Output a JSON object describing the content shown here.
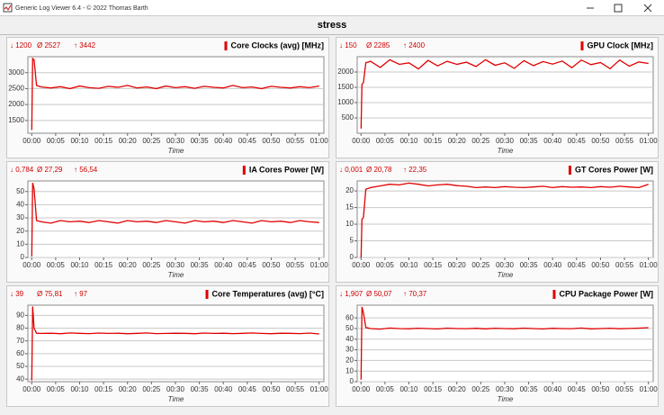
{
  "window": {
    "title": "Generic Log Viewer 6.4 - © 2022 Thomas Barth"
  },
  "title": "stress",
  "chart_data": [
    {
      "type": "line",
      "title": "Core Clocks (avg) [MHz]",
      "stats": [
        "↓ 1200",
        "Ø 2527",
        "↑ 3442"
      ],
      "color": "#e00000",
      "xlabel": "Time",
      "grid": true,
      "x": [
        0,
        0.2,
        0.5,
        1,
        2,
        4,
        6,
        8,
        10,
        12,
        14,
        16,
        18,
        20,
        22,
        24,
        26,
        28,
        30,
        32,
        34,
        36,
        38,
        40,
        42,
        44,
        46,
        48,
        50,
        52,
        54,
        56,
        58,
        60
      ],
      "values": [
        1200,
        3442,
        3400,
        2600,
        2550,
        2520,
        2560,
        2500,
        2580,
        2530,
        2510,
        2570,
        2540,
        2600,
        2520,
        2550,
        2500,
        2580,
        2530,
        2560,
        2510,
        2570,
        2540,
        2520,
        2600,
        2530,
        2550,
        2500,
        2570,
        2540,
        2520,
        2560,
        2530,
        2580
      ],
      "xlim": [
        -0.8,
        61
      ],
      "ylim": [
        1100,
        3500
      ],
      "yticks": [
        1500,
        2000,
        2500,
        3000
      ],
      "xticks": [
        {
          "value": 0,
          "label": "00:00"
        },
        {
          "value": 5,
          "label": "00:05"
        },
        {
          "value": 10,
          "label": "00:10"
        },
        {
          "value": 15,
          "label": "00:15"
        },
        {
          "value": 20,
          "label": "00:20"
        },
        {
          "value": 25,
          "label": "00:25"
        },
        {
          "value": 30,
          "label": "00:30"
        },
        {
          "value": 35,
          "label": "00:35"
        },
        {
          "value": 40,
          "label": "00:40"
        },
        {
          "value": 45,
          "label": "00:45"
        },
        {
          "value": 50,
          "label": "00:50"
        },
        {
          "value": 55,
          "label": "00:55"
        },
        {
          "value": 60,
          "label": "01:00"
        }
      ]
    },
    {
      "type": "line",
      "title": "GPU Clock [MHz]",
      "stats": [
        "↓ 150",
        "Ø 2285",
        "↑ 2400"
      ],
      "color": "#e00000",
      "xlabel": "Time",
      "grid": true,
      "x": [
        0,
        0.2,
        0.5,
        1,
        2,
        4,
        6,
        8,
        10,
        12,
        14,
        16,
        18,
        20,
        22,
        24,
        26,
        28,
        30,
        32,
        34,
        36,
        38,
        40,
        42,
        44,
        46,
        48,
        50,
        52,
        54,
        56,
        58,
        60
      ],
      "values": [
        150,
        1600,
        1650,
        2300,
        2350,
        2150,
        2400,
        2250,
        2300,
        2100,
        2380,
        2200,
        2350,
        2250,
        2320,
        2180,
        2400,
        2220,
        2300,
        2120,
        2370,
        2210,
        2340,
        2260,
        2360,
        2140,
        2390,
        2240,
        2310,
        2110,
        2390,
        2190,
        2330,
        2280
      ],
      "xlim": [
        -0.8,
        61
      ],
      "ylim": [
        0,
        2500
      ],
      "yticks": [
        500,
        1000,
        1500,
        2000
      ],
      "xticks": [
        {
          "value": 0,
          "label": "00:00"
        },
        {
          "value": 5,
          "label": "00:05"
        },
        {
          "value": 10,
          "label": "00:10"
        },
        {
          "value": 15,
          "label": "00:15"
        },
        {
          "value": 20,
          "label": "00:20"
        },
        {
          "value": 25,
          "label": "00:25"
        },
        {
          "value": 30,
          "label": "00:30"
        },
        {
          "value": 35,
          "label": "00:35"
        },
        {
          "value": 40,
          "label": "00:40"
        },
        {
          "value": 45,
          "label": "00:45"
        },
        {
          "value": 50,
          "label": "00:50"
        },
        {
          "value": 55,
          "label": "00:55"
        },
        {
          "value": 60,
          "label": "01:00"
        }
      ]
    },
    {
      "type": "line",
      "title": "IA Cores Power [W]",
      "stats": [
        "↓ 0,784",
        "Ø 27,29",
        "↑ 56,54"
      ],
      "color": "#e00000",
      "xlabel": "Time",
      "grid": true,
      "x": [
        0,
        0.2,
        0.5,
        1,
        2,
        4,
        6,
        8,
        10,
        12,
        14,
        16,
        18,
        20,
        22,
        24,
        26,
        28,
        30,
        32,
        34,
        36,
        38,
        40,
        42,
        44,
        46,
        48,
        50,
        52,
        54,
        56,
        58,
        60
      ],
      "values": [
        0.784,
        56.54,
        52,
        28,
        27,
        26,
        28,
        27,
        27.5,
        26.5,
        28,
        27,
        26,
        28,
        27,
        27.5,
        26.5,
        28,
        27,
        26,
        28,
        27,
        27.5,
        26.5,
        28,
        27,
        26,
        28,
        27,
        27.5,
        26.5,
        28,
        27,
        26.5
      ],
      "xlim": [
        -0.8,
        61
      ],
      "ylim": [
        0,
        58
      ],
      "yticks": [
        0,
        10,
        20,
        30,
        40,
        50
      ],
      "xticks": [
        {
          "value": 0,
          "label": "00:00"
        },
        {
          "value": 5,
          "label": "00:05"
        },
        {
          "value": 10,
          "label": "00:10"
        },
        {
          "value": 15,
          "label": "00:15"
        },
        {
          "value": 20,
          "label": "00:20"
        },
        {
          "value": 25,
          "label": "00:25"
        },
        {
          "value": 30,
          "label": "00:30"
        },
        {
          "value": 35,
          "label": "00:35"
        },
        {
          "value": 40,
          "label": "00:40"
        },
        {
          "value": 45,
          "label": "00:45"
        },
        {
          "value": 50,
          "label": "00:50"
        },
        {
          "value": 55,
          "label": "00:55"
        },
        {
          "value": 60,
          "label": "01:00"
        }
      ]
    },
    {
      "type": "line",
      "title": "GT Cores Power [W]",
      "stats": [
        "↓ 0,001",
        "Ø 20,78",
        "↑ 22,35"
      ],
      "color": "#e00000",
      "xlabel": "Time",
      "grid": true,
      "x": [
        0,
        0.2,
        0.5,
        1,
        2,
        4,
        6,
        8,
        10,
        12,
        14,
        16,
        18,
        20,
        22,
        24,
        26,
        28,
        30,
        32,
        34,
        36,
        38,
        40,
        42,
        44,
        46,
        48,
        50,
        52,
        54,
        56,
        58,
        60
      ],
      "values": [
        0.001,
        11.5,
        12,
        20.5,
        21,
        21.5,
        22,
        21.8,
        22.35,
        22,
        21.5,
        21.8,
        22,
        21.6,
        21.4,
        21,
        21.2,
        21,
        21.3,
        21.1,
        21,
        21.2,
        21.4,
        21,
        21.3,
        21.1,
        21.2,
        21,
        21.3,
        21.1,
        21.4,
        21.2,
        21,
        22
      ],
      "xlim": [
        -0.8,
        61
      ],
      "ylim": [
        0,
        23
      ],
      "yticks": [
        0,
        5,
        10,
        15,
        20
      ],
      "xticks": [
        {
          "value": 0,
          "label": "00:00"
        },
        {
          "value": 5,
          "label": "00:05"
        },
        {
          "value": 10,
          "label": "00:10"
        },
        {
          "value": 15,
          "label": "00:15"
        },
        {
          "value": 20,
          "label": "00:20"
        },
        {
          "value": 25,
          "label": "00:25"
        },
        {
          "value": 30,
          "label": "00:30"
        },
        {
          "value": 35,
          "label": "00:35"
        },
        {
          "value": 40,
          "label": "00:40"
        },
        {
          "value": 45,
          "label": "00:45"
        },
        {
          "value": 50,
          "label": "00:50"
        },
        {
          "value": 55,
          "label": "00:55"
        },
        {
          "value": 60,
          "label": "01:00"
        }
      ]
    },
    {
      "type": "line",
      "title": "Core Temperatures (avg) [°C]",
      "stats": [
        "↓ 39",
        "Ø 75,81",
        "↑ 97"
      ],
      "color": "#e00000",
      "xlabel": "Time",
      "grid": true,
      "x": [
        0,
        0.2,
        0.5,
        1,
        2,
        4,
        6,
        8,
        10,
        12,
        14,
        16,
        18,
        20,
        22,
        24,
        26,
        28,
        30,
        32,
        34,
        36,
        38,
        40,
        42,
        44,
        46,
        48,
        50,
        52,
        54,
        56,
        58,
        60
      ],
      "values": [
        39,
        97,
        80,
        76,
        75.8,
        76,
        75.6,
        76.2,
        75.9,
        75.7,
        76.1,
        75.8,
        76,
        75.6,
        75.9,
        76.2,
        75.7,
        75.8,
        76,
        75.9,
        75.6,
        76.1,
        75.8,
        76,
        75.7,
        75.9,
        76.2,
        75.8,
        75.6,
        76,
        75.9,
        75.7,
        76.1,
        75.4
      ],
      "xlim": [
        -0.8,
        61
      ],
      "ylim": [
        38,
        98
      ],
      "yticks": [
        40,
        50,
        60,
        70,
        80,
        90
      ],
      "xticks": [
        {
          "value": 0,
          "label": "00:00"
        },
        {
          "value": 5,
          "label": "00:05"
        },
        {
          "value": 10,
          "label": "00:10"
        },
        {
          "value": 15,
          "label": "00:15"
        },
        {
          "value": 20,
          "label": "00:20"
        },
        {
          "value": 25,
          "label": "00:25"
        },
        {
          "value": 30,
          "label": "00:30"
        },
        {
          "value": 35,
          "label": "00:35"
        },
        {
          "value": 40,
          "label": "00:40"
        },
        {
          "value": 45,
          "label": "00:45"
        },
        {
          "value": 50,
          "label": "00:50"
        },
        {
          "value": 55,
          "label": "00:55"
        },
        {
          "value": 60,
          "label": "01:00"
        }
      ]
    },
    {
      "type": "line",
      "title": "CPU Package Power [W]",
      "stats": [
        "↓ 1,907",
        "Ø 50,07",
        "↑ 70,37"
      ],
      "color": "#e00000",
      "xlabel": "Time",
      "grid": true,
      "x": [
        0,
        0.2,
        0.5,
        1,
        2,
        4,
        6,
        8,
        10,
        12,
        14,
        16,
        18,
        20,
        22,
        24,
        26,
        28,
        30,
        32,
        34,
        36,
        38,
        40,
        42,
        44,
        46,
        48,
        50,
        52,
        54,
        56,
        58,
        60
      ],
      "values": [
        1.907,
        70.37,
        65,
        51,
        50,
        49.5,
        50.5,
        50,
        49.8,
        50.3,
        50,
        49.6,
        50.4,
        50,
        49.9,
        50.2,
        49.7,
        50.3,
        50,
        49.8,
        50.4,
        50,
        49.6,
        50.2,
        50,
        49.9,
        50.5,
        49.7,
        50,
        50.3,
        49.8,
        50.1,
        50.4,
        50.8
      ],
      "xlim": [
        -0.8,
        61
      ],
      "ylim": [
        0,
        72
      ],
      "yticks": [
        0,
        10,
        20,
        30,
        40,
        50,
        60
      ],
      "xticks": [
        {
          "value": 0,
          "label": "00:00"
        },
        {
          "value": 5,
          "label": "00:05"
        },
        {
          "value": 10,
          "label": "00:10"
        },
        {
          "value": 15,
          "label": "00:15"
        },
        {
          "value": 20,
          "label": "00:20"
        },
        {
          "value": 25,
          "label": "00:25"
        },
        {
          "value": 30,
          "label": "00:30"
        },
        {
          "value": 35,
          "label": "00:35"
        },
        {
          "value": 40,
          "label": "00:40"
        },
        {
          "value": 45,
          "label": "00:45"
        },
        {
          "value": 50,
          "label": "00:50"
        },
        {
          "value": 55,
          "label": "00:55"
        },
        {
          "value": 60,
          "label": "01:00"
        }
      ]
    }
  ]
}
